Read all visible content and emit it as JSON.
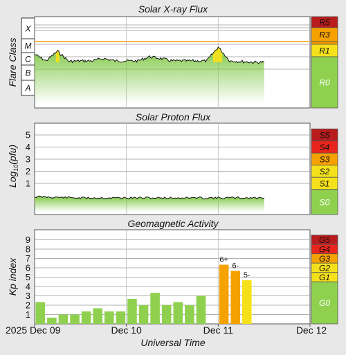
{
  "xray": {
    "title": "Solar X-ray Flux",
    "ylabel": "Flare Class",
    "class_labels": [
      "X",
      "M",
      "C",
      "B",
      "A"
    ],
    "scale_labels": [
      "R5",
      "R3",
      "R1",
      "R0"
    ]
  },
  "proton": {
    "title": "Solar Proton Flux",
    "ylabel": "Log10(pfu)",
    "tick_labels": [
      "5",
      "4",
      "3",
      "2",
      "1"
    ],
    "scale_labels": [
      "S5",
      "S4",
      "S3",
      "S2",
      "S1",
      "S0"
    ]
  },
  "geomag": {
    "title": "Geomagnetic Activity",
    "ylabel": "Kp index",
    "tick_labels": [
      "9",
      "8",
      "7",
      "6",
      "5",
      "4",
      "3",
      "2",
      "1"
    ],
    "scale_labels": [
      "G5",
      "G4",
      "G3",
      "G2",
      "G1",
      "G0"
    ]
  },
  "xaxis": {
    "label": "Universal Time",
    "ticks": [
      "2025 Dec 09",
      "Dec 10",
      "Dec 11",
      "Dec 12"
    ]
  },
  "colors": {
    "green": "#8fd14f",
    "yellow": "#f5e11b",
    "orange": "#f5a100",
    "red": "#e8251c",
    "darkred": "#b81c1c",
    "xray_orange": "#f39b00"
  },
  "chart_data": [
    {
      "type": "line",
      "title": "Solar X-ray Flux",
      "ylabel": "Flare Class",
      "y_scale": "log",
      "y_classes": [
        "A",
        "B",
        "C",
        "M",
        "X"
      ],
      "x_range": [
        "2025-12-09 00:00",
        "2025-12-12 00:00"
      ],
      "x": [
        "2025-12-09 00:00",
        "2025-12-09 03:00",
        "2025-12-09 06:00",
        "2025-12-09 09:00",
        "2025-12-09 12:00",
        "2025-12-09 15:00",
        "2025-12-09 18:00",
        "2025-12-09 21:00",
        "2025-12-10 00:00",
        "2025-12-10 03:00",
        "2025-12-10 06:00",
        "2025-12-10 09:00",
        "2025-12-10 12:00",
        "2025-12-10 15:00",
        "2025-12-10 18:00",
        "2025-12-10 21:00",
        "2025-12-11 00:00",
        "2025-12-11 03:00",
        "2025-12-11 06:00",
        "2025-12-11 09:00",
        "2025-12-11 12:00"
      ],
      "series": [
        {
          "values": [
            "C3",
            "C1",
            "C5",
            "B9",
            "C1",
            "C1",
            "C1.5",
            "C1",
            "C1",
            "C1",
            "C2",
            "C1.5",
            "C1",
            "C1",
            "C1",
            "C1",
            "M1",
            "C1",
            "B9",
            "B8",
            "B8"
          ]
        }
      ],
      "scale": [
        "R0",
        "R1",
        "R3",
        "R5"
      ]
    },
    {
      "type": "line",
      "title": "Solar Proton Flux",
      "ylabel": "Log10(pfu)",
      "y_range": [
        -1,
        5.5
      ],
      "x_range": [
        "2025-12-09 00:00",
        "2025-12-12 00:00"
      ],
      "x": [
        "2025-12-09 00:00",
        "2025-12-09 12:00",
        "2025-12-10 00:00",
        "2025-12-10 12:00",
        "2025-12-11 00:00",
        "2025-12-11 12:00"
      ],
      "series": [
        {
          "values": [
            -0.1,
            -0.2,
            -0.2,
            -0.2,
            -0.2,
            -0.2
          ]
        }
      ],
      "scale": [
        "S0",
        "S1",
        "S2",
        "S3",
        "S4",
        "S5"
      ]
    },
    {
      "type": "bar",
      "title": "Geomagnetic Activity",
      "ylabel": "Kp index",
      "xlabel": "Universal Time",
      "ylim": [
        0,
        9.5
      ],
      "categories": [
        "2025-12-09 00:00",
        "2025-12-09 03:00",
        "2025-12-09 06:00",
        "2025-12-09 09:00",
        "2025-12-09 12:00",
        "2025-12-09 15:00",
        "2025-12-09 18:00",
        "2025-12-09 21:00",
        "2025-12-10 00:00",
        "2025-12-10 03:00",
        "2025-12-10 06:00",
        "2025-12-10 09:00",
        "2025-12-10 12:00",
        "2025-12-10 15:00",
        "2025-12-10 18:00",
        "2025-12-11 00:00",
        "2025-12-11 03:00",
        "2025-12-11 06:00"
      ],
      "values": [
        2.33,
        0.67,
        1.0,
        1.0,
        1.33,
        1.67,
        1.33,
        1.33,
        2.67,
        2.0,
        3.33,
        2.0,
        2.33,
        2.0,
        3.0,
        6.33,
        5.67,
        4.67
      ],
      "data_labels": [
        {
          "index": 15,
          "text": "6+"
        },
        {
          "index": 16,
          "text": "6-"
        },
        {
          "index": 17,
          "text": "5-"
        }
      ],
      "scale": [
        "G0",
        "G1",
        "G2",
        "G3",
        "G4",
        "G5"
      ]
    }
  ]
}
